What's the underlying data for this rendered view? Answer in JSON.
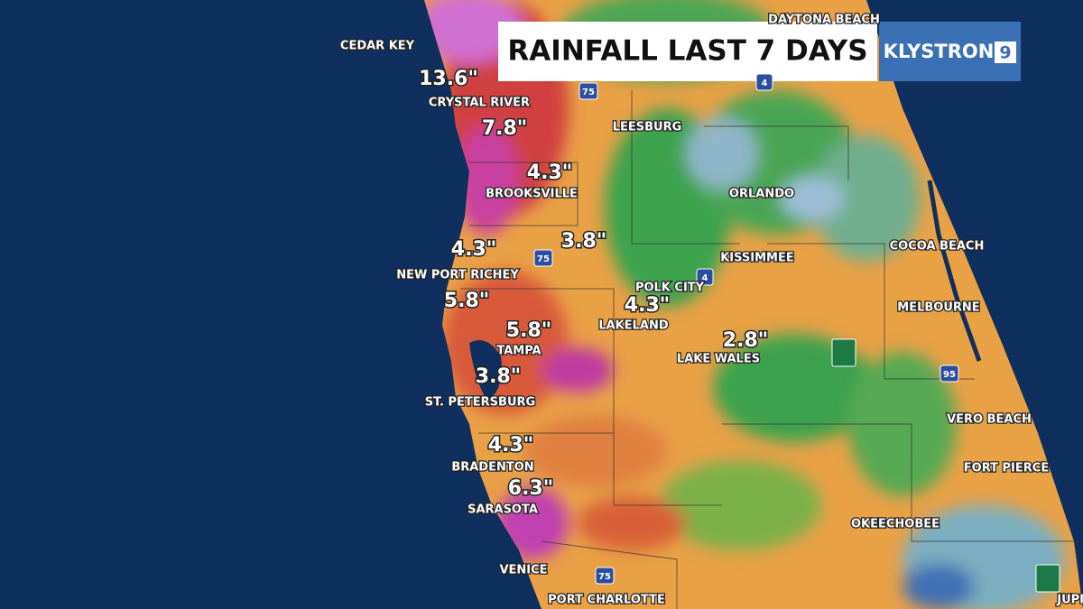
{
  "header": {
    "title": "RAINFALL LAST 7 DAYS",
    "brand": "KLYSTRON",
    "brand_number": "9"
  },
  "cities": [
    "CEDAR KEY",
    "DAYTONA BEACH",
    "CRYSTAL RIVER",
    "LEESBURG",
    "BROOKSVILLE",
    "ORLANDO",
    "NEW PORT RICHEY",
    "COCOA BEACH",
    "KISSIMMEE",
    "POLK CITY",
    "MELBOURNE",
    "LAKELAND",
    "TAMPA",
    "LAKE WALES",
    "ST. PETERSBURG",
    "VERO BEACH",
    "FORT PIERCE",
    "BRADENTON",
    "OKEECHOBEE",
    "SARASOTA",
    "VENICE",
    "PORT CHARLOTTE",
    "JUPITER"
  ],
  "rainfall": [
    "13.6\"",
    "7.8\"",
    "4.3\"",
    "3.8\"",
    "4.3\"",
    "5.8\"",
    "4.3\"",
    "5.8\"",
    "2.8\"",
    "3.8\"",
    "4.3\"",
    "6.3\""
  ],
  "highways": [
    "75",
    "75",
    "75",
    "4",
    "4",
    "95"
  ]
}
